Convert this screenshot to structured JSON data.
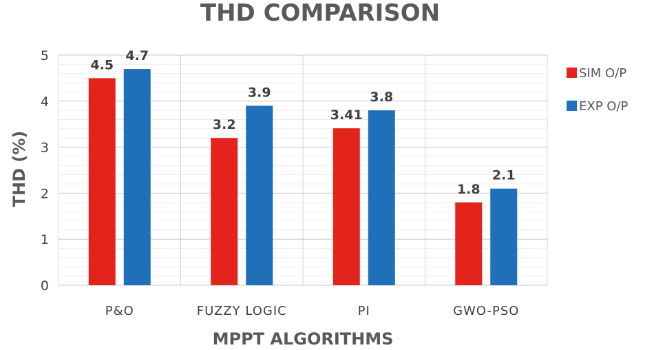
{
  "chart_data": {
    "type": "bar",
    "title": "THD COMPARISON",
    "xlabel": "MPPT ALGORITHMS",
    "ylabel": "THD  (%)",
    "categories": [
      "P&O",
      "FUZZY LOGIC",
      "PI",
      "GWO-PSO"
    ],
    "series": [
      {
        "name": "SIM O/P",
        "values": [
          4.5,
          3.2,
          3.41,
          1.8
        ],
        "labels": [
          "4.5",
          "3.2",
          "3.41",
          "1.8"
        ],
        "color": "#e3231c"
      },
      {
        "name": "EXP O/P",
        "values": [
          4.7,
          3.9,
          3.8,
          2.1
        ],
        "labels": [
          "4.7",
          "3.9",
          "3.8",
          "2.1"
        ],
        "color": "#1f6fb9"
      }
    ],
    "ylim": [
      0,
      5
    ],
    "yticks": [
      "0",
      "1",
      "2",
      "3",
      "4",
      "5"
    ],
    "grid": true,
    "legend": "right"
  }
}
